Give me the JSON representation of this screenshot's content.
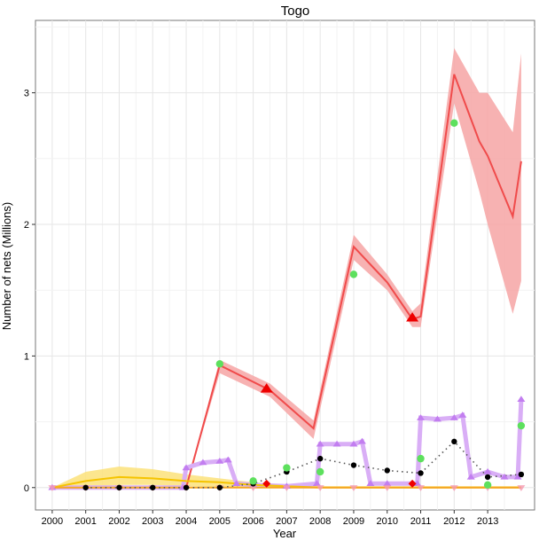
{
  "chart_data": {
    "type": "line",
    "title": "Togo",
    "xlabel": "Year",
    "ylabel": "Number of nets (Millions)",
    "xlim": [
      1999.5,
      2014.4
    ],
    "ylim": [
      -0.17,
      3.55
    ],
    "x_ticks": [
      2000,
      2001,
      2002,
      2003,
      2004,
      2005,
      2006,
      2007,
      2008,
      2009,
      2010,
      2011,
      2012,
      2013
    ],
    "x_tick_labels": [
      "2000",
      "2001",
      "2002",
      "2003",
      "2004",
      "2005",
      "2006",
      "2007",
      "2008",
      "2009",
      "2010",
      "2011",
      "2012",
      "2013"
    ],
    "y_ticks": [
      0,
      1,
      2,
      3
    ],
    "y_tick_labels": [
      "0",
      "1",
      "2",
      "3"
    ],
    "grid": true,
    "legend": "none",
    "colors": {
      "red": "#f04b4b",
      "red_band": "#f6a5a5",
      "purple": "#c27ef0",
      "purple_band": "#d9aef6",
      "yellow": "#f5c400",
      "yellow_band": "#fbe27a",
      "orange": "#f5a623",
      "green_points": "#5de05d",
      "black_points": "#000000",
      "red_markers": "#ee0000"
    },
    "series": [
      {
        "color": "red",
        "style": "solid-with-band",
        "x": [
          2000,
          2004,
          2005,
          2006.5,
          2007.8,
          2009,
          2010,
          2010.75,
          2011,
          2012,
          2012.75,
          2013,
          2013.75,
          2014
        ],
        "y": [
          0,
          0,
          0.93,
          0.74,
          0.45,
          1.83,
          1.56,
          1.28,
          1.3,
          3.14,
          2.63,
          2.52,
          2.06,
          2.48
        ],
        "lower": [
          0,
          0,
          0.87,
          0.69,
          0.37,
          1.73,
          1.5,
          1.22,
          1.22,
          2.92,
          2.25,
          2.0,
          1.32,
          1.57
        ],
        "upper": [
          0,
          0,
          0.97,
          0.79,
          0.51,
          1.92,
          1.62,
          1.34,
          1.4,
          3.34,
          3.0,
          3.0,
          2.7,
          3.3
        ]
      },
      {
        "color": "purple",
        "style": "line-with-triangles",
        "x": [
          2000,
          2003.9,
          2004,
          2004.5,
          2005,
          2005.25,
          2005.5,
          2006,
          2007,
          2007.9,
          2008,
          2008.5,
          2009,
          2009.25,
          2009.5,
          2010,
          2010.9,
          2011,
          2011.5,
          2012,
          2012.25,
          2012.5,
          2013,
          2013.5,
          2013.9,
          2014
        ],
        "y": [
          0,
          0,
          0.15,
          0.19,
          0.2,
          0.21,
          0.03,
          0.02,
          0.01,
          0.03,
          0.33,
          0.33,
          0.33,
          0.35,
          0.03,
          0.03,
          0.03,
          0.53,
          0.52,
          0.53,
          0.55,
          0.08,
          0.12,
          0.08,
          0.08,
          0.67
        ]
      },
      {
        "color": "yellow",
        "style": "solid-with-band",
        "x": [
          2000,
          2001,
          2002,
          2003,
          2004,
          2005,
          2006,
          2007,
          2008,
          2009,
          2010,
          2011,
          2012,
          2013,
          2014
        ],
        "y": [
          0.0,
          0.05,
          0.08,
          0.07,
          0.05,
          0.04,
          0.02,
          0.01,
          0.0,
          0.0,
          0.0,
          0.0,
          0.0,
          0.0,
          0.0
        ],
        "lower": [
          0.0,
          0.0,
          0.02,
          0.02,
          0.01,
          0.0,
          0.0,
          0.0,
          0.0,
          0.0,
          0.0,
          0.0,
          0.0,
          0.0,
          0.0
        ],
        "upper": [
          0.0,
          0.12,
          0.16,
          0.14,
          0.1,
          0.07,
          0.04,
          0.02,
          0.01,
          0.01,
          0.01,
          0.01,
          0.01,
          0.01,
          0.01
        ]
      },
      {
        "color": "orange",
        "style": "line-with-down-triangles",
        "x": [
          2000,
          2001,
          2002,
          2003,
          2004,
          2005,
          2006,
          2007,
          2008,
          2009,
          2010,
          2011,
          2012,
          2013,
          2014
        ],
        "y": [
          0,
          0,
          0,
          0,
          0,
          0,
          0,
          0,
          0,
          0,
          0,
          0,
          0,
          0,
          0
        ]
      },
      {
        "color": "black",
        "style": "dotted-with-points",
        "x": [
          2001,
          2002,
          2003,
          2004,
          2005,
          2006,
          2007,
          2008,
          2009,
          2010,
          2011,
          2012,
          2013,
          2014
        ],
        "y": [
          0.0,
          0.0,
          0.0,
          0.0,
          0.0,
          0.03,
          0.12,
          0.22,
          0.17,
          0.13,
          0.11,
          0.35,
          0.08,
          0.1
        ]
      }
    ],
    "green_points": {
      "x": [
        2005,
        2006,
        2007,
        2008,
        2009,
        2011,
        2012,
        2013,
        2014
      ],
      "y": [
        0.94,
        0.05,
        0.15,
        0.12,
        1.62,
        0.22,
        2.77,
        0.02,
        0.47
      ]
    },
    "red_triangle_markers": {
      "x": [
        2006.4,
        2010.75
      ],
      "y": [
        0.75,
        1.29
      ]
    },
    "red_diamond_markers": {
      "x": [
        2006.4,
        2010.75
      ],
      "y": [
        0.03,
        0.03
      ]
    }
  }
}
